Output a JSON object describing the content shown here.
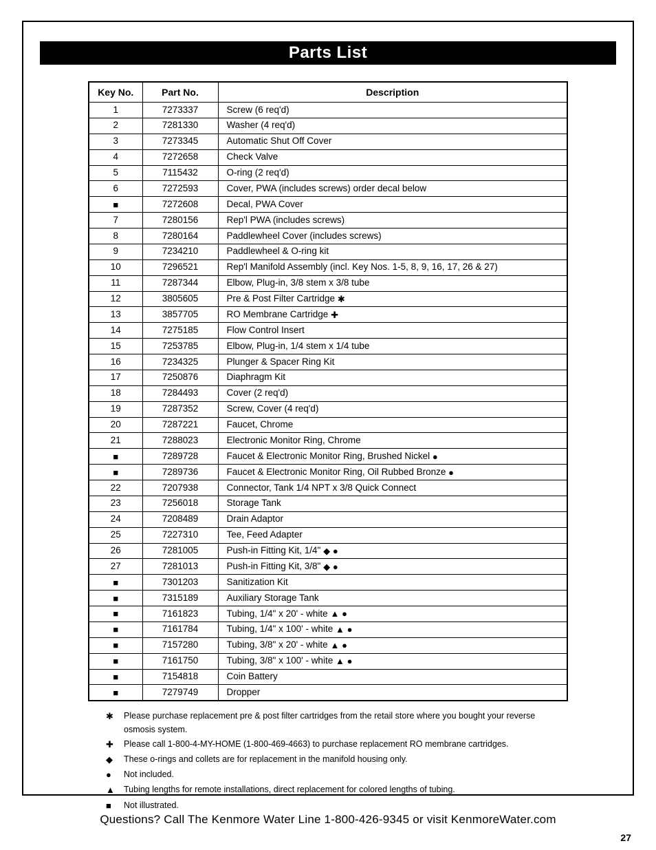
{
  "title": "Parts List",
  "table": {
    "headers": {
      "key": "Key No.",
      "part": "Part No.",
      "desc": "Description"
    },
    "rows": [
      {
        "key": "1",
        "part": "7273337",
        "desc": "Screw (6 req'd)",
        "syms": []
      },
      {
        "key": "2",
        "part": "7281330",
        "desc": "Washer (4 req'd)",
        "syms": []
      },
      {
        "key": "3",
        "part": "7273345",
        "desc": "Automatic Shut Off Cover",
        "syms": []
      },
      {
        "key": "4",
        "part": "7272658",
        "desc": "Check Valve",
        "syms": []
      },
      {
        "key": "5",
        "part": "7115432",
        "desc": "O-ring (2 req'd)",
        "syms": []
      },
      {
        "key": "6",
        "part": "7272593",
        "desc": "Cover, PWA (includes screws) order decal below",
        "syms": []
      },
      {
        "keySym": "square",
        "part": "7272608",
        "desc": "Decal, PWA Cover",
        "syms": []
      },
      {
        "key": "7",
        "part": "7280156",
        "desc": "Rep'l PWA (includes screws)",
        "syms": []
      },
      {
        "key": "8",
        "part": "7280164",
        "desc": "Paddlewheel Cover (includes screws)",
        "syms": []
      },
      {
        "key": "9",
        "part": "7234210",
        "desc": "Paddlewheel & O-ring kit",
        "syms": []
      },
      {
        "key": "10",
        "part": "7296521",
        "desc": "Rep'l Manifold Assembly (incl. Key Nos. 1-5, 8, 9, 16, 17, 26 & 27)",
        "syms": []
      },
      {
        "key": "11",
        "part": "7287344",
        "desc": "Elbow, Plug-in, 3/8 stem x 3/8 tube",
        "syms": []
      },
      {
        "key": "12",
        "part": "3805605",
        "desc": "Pre & Post Filter Cartridge",
        "syms": [
          "star"
        ]
      },
      {
        "key": "13",
        "part": "3857705",
        "desc": "RO Membrane Cartridge",
        "syms": [
          "plus"
        ]
      },
      {
        "key": "14",
        "part": "7275185",
        "desc": "Flow Control Insert",
        "syms": []
      },
      {
        "key": "15",
        "part": "7253785",
        "desc": "Elbow, Plug-in, 1/4 stem x 1/4 tube",
        "syms": []
      },
      {
        "key": "16",
        "part": "7234325",
        "desc": "Plunger & Spacer Ring Kit",
        "syms": []
      },
      {
        "key": "17",
        "part": "7250876",
        "desc": "Diaphragm Kit",
        "syms": []
      },
      {
        "key": "18",
        "part": "7284493",
        "desc": "Cover (2 req'd)",
        "syms": []
      },
      {
        "key": "19",
        "part": "7287352",
        "desc": "Screw, Cover (4 req'd)",
        "syms": []
      },
      {
        "key": "20",
        "part": "7287221",
        "desc": "Faucet, Chrome",
        "syms": []
      },
      {
        "key": "21",
        "part": "7288023",
        "desc": "Electronic Monitor Ring, Chrome",
        "syms": []
      },
      {
        "keySym": "square",
        "part": "7289728",
        "desc": "Faucet & Electronic Monitor Ring, Brushed Nickel",
        "syms": [
          "dot"
        ]
      },
      {
        "keySym": "square",
        "part": "7289736",
        "desc": "Faucet & Electronic Monitor Ring, Oil Rubbed Bronze",
        "syms": [
          "dot"
        ]
      },
      {
        "key": "22",
        "part": "7207938",
        "desc": "Connector, Tank 1/4 NPT x 3/8 Quick Connect",
        "syms": []
      },
      {
        "key": "23",
        "part": "7256018",
        "desc": "Storage Tank",
        "syms": []
      },
      {
        "key": "24",
        "part": "7208489",
        "desc": "Drain Adaptor",
        "syms": []
      },
      {
        "key": "25",
        "part": "7227310",
        "desc": "Tee, Feed Adapter",
        "syms": []
      },
      {
        "key": "26",
        "part": "7281005",
        "desc": "Push-in Fitting Kit, 1/4\"",
        "syms": [
          "diamond",
          "dot"
        ]
      },
      {
        "key": "27",
        "part": "7281013",
        "desc": "Push-in Fitting Kit, 3/8\"",
        "syms": [
          "diamond",
          "dot"
        ]
      },
      {
        "keySym": "square",
        "part": "7301203",
        "desc": "Sanitization Kit",
        "syms": []
      },
      {
        "keySym": "square",
        "part": "7315189",
        "desc": "Auxiliary Storage Tank",
        "syms": []
      },
      {
        "keySym": "square",
        "part": "7161823",
        "desc": "Tubing, 1/4\" x 20' - white",
        "syms": [
          "triangle",
          "dot"
        ]
      },
      {
        "keySym": "square",
        "part": "7161784",
        "desc": "Tubing, 1/4\" x 100' - white",
        "syms": [
          "triangle",
          "dot"
        ]
      },
      {
        "keySym": "square",
        "part": "7157280",
        "desc": "Tubing, 3/8\" x 20' - white",
        "syms": [
          "triangle",
          "dot"
        ]
      },
      {
        "keySym": "square",
        "part": "7161750",
        "desc": "Tubing, 3/8\" x 100' - white",
        "syms": [
          "triangle",
          "dot"
        ]
      },
      {
        "keySym": "square",
        "part": "7154818",
        "desc": "Coin Battery",
        "syms": []
      },
      {
        "keySym": "square",
        "part": "7279749",
        "desc": "Dropper",
        "syms": []
      }
    ]
  },
  "notes": [
    {
      "sym": "star",
      "text": "Please purchase replacement pre & post filter cartridges from the retail store where you bought your reverse osmosis system."
    },
    {
      "sym": "plus",
      "text": "Please call 1-800-4-MY-HOME (1-800-469-4663) to purchase replacement RO membrane cartridges."
    },
    {
      "sym": "diamond",
      "text": "These o-rings and collets are for replacement in the manifold housing only."
    },
    {
      "sym": "dot",
      "text": "Not included."
    },
    {
      "sym": "triangle",
      "text": "Tubing lengths for remote installations, direct replacement for colored lengths of tubing."
    },
    {
      "sym": "square",
      "text": "Not illustrated."
    }
  ],
  "symbols": {
    "star": "✱",
    "plus": "✚",
    "diamond": "◆",
    "dot": "●",
    "triangle": "▲",
    "square": "■"
  },
  "footer": "Questions? Call The Kenmore Water Line 1-800-426-9345 or visit KenmoreWater.com",
  "page_number": "27"
}
